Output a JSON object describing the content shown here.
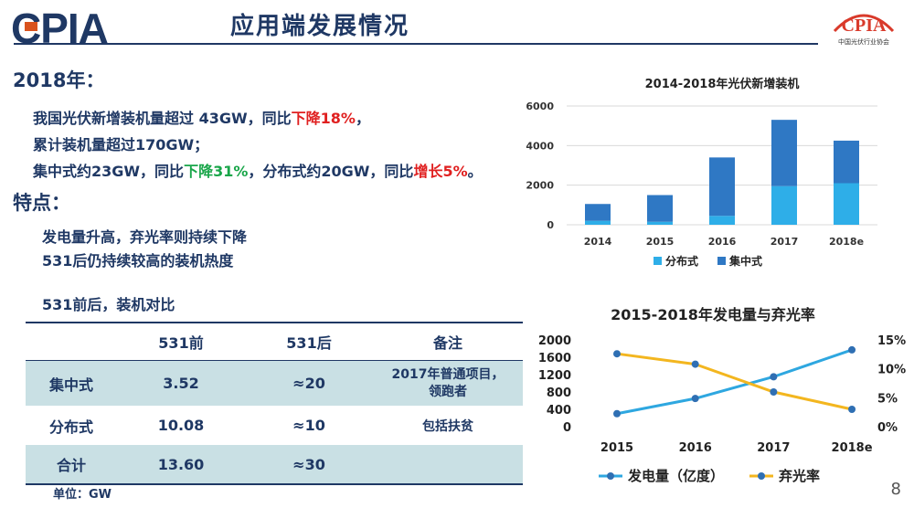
{
  "header": {
    "logo": "CPIA",
    "title": "应用端发展情况",
    "badge": "CPIA",
    "badge_sub": "中国光伏行业协会"
  },
  "section2018": {
    "heading": "2018年：",
    "line1_a": "我国光伏新增装机量超过 43GW，同比",
    "line1_b": "下降18%",
    "line1_c": "，",
    "line2": "累计装机量超过170GW；",
    "line3_a": "集中式约23GW，同比",
    "line3_b": "下降31%",
    "line3_c": "，分布式约20GW，同比",
    "line3_d": "增长5%",
    "line3_e": "。"
  },
  "features": {
    "heading": "特点：",
    "item1": "发电量升高，弃光率则持续下降",
    "item2": "531后仍持续较高的装机热度"
  },
  "comparison": {
    "caption": "531前后，装机对比",
    "headers": [
      "",
      "531前",
      "531后",
      "备注"
    ],
    "rows": [
      {
        "label": "集中式",
        "before": "3.52",
        "after": "≈20",
        "note1": "2017年普通项目，",
        "note2": "领跑者"
      },
      {
        "label": "分布式",
        "before": "10.08",
        "after": "≈10",
        "note1": "包括扶贫",
        "note2": ""
      },
      {
        "label": "合计",
        "before": "13.60",
        "after": "≈30",
        "note1": "",
        "note2": ""
      }
    ],
    "unit": "单位：GW"
  },
  "page_number": "8",
  "chart_data": [
    {
      "type": "bar",
      "stacked": true,
      "title": "2014-2018年光伏新增装机",
      "categories": [
        "2014",
        "2015",
        "2016",
        "2017",
        "2018e"
      ],
      "series": [
        {
          "name": "分布式",
          "color": "#2eaee8",
          "values": [
            200,
            150,
            450,
            1950,
            2100
          ]
        },
        {
          "name": "集中式",
          "color": "#2f78c4",
          "values": [
            850,
            1350,
            2950,
            3350,
            2150
          ]
        }
      ],
      "ylim": [
        0,
        6000
      ],
      "yticks": [
        "0",
        "2000",
        "4000",
        "6000"
      ],
      "legend": "bottom"
    },
    {
      "type": "line",
      "title": "2015-2018年发电量与弃光率",
      "categories": [
        "2015",
        "2016",
        "2017",
        "2018e"
      ],
      "series": [
        {
          "name": "发电量（亿度）",
          "color": "#2ea7e0",
          "axis": "left",
          "values": [
            300,
            650,
            1150,
            1770
          ]
        },
        {
          "name": "弃光率",
          "color": "#f3b61f",
          "axis": "right",
          "values": [
            12.6,
            10.8,
            6.0,
            3.0
          ]
        }
      ],
      "ylim_left": [
        0,
        2000
      ],
      "yticks_left": [
        "0",
        "400",
        "800",
        "1200",
        "1600",
        "2000"
      ],
      "ylim_right": [
        0,
        15
      ],
      "yticks_right": [
        "0%",
        "5%",
        "10%",
        "15%"
      ],
      "legend": "bottom"
    }
  ]
}
